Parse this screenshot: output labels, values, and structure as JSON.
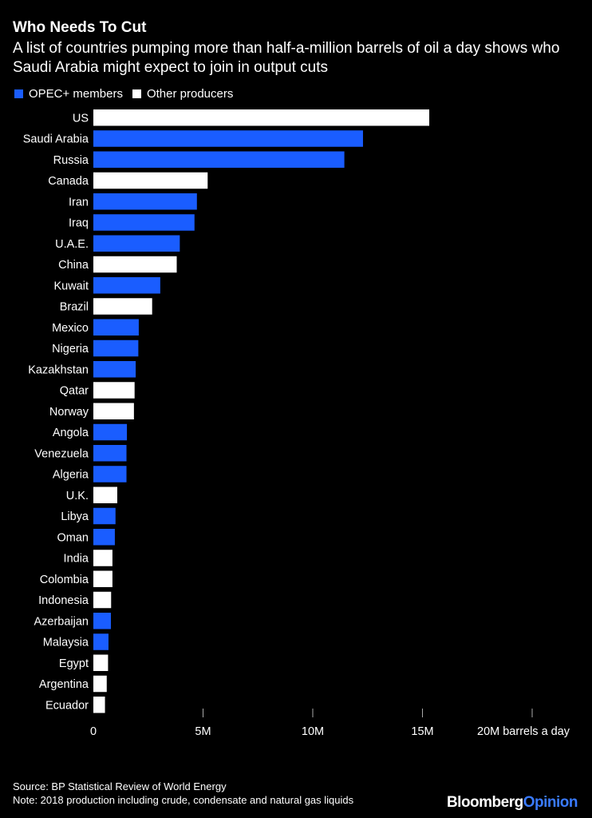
{
  "header": {
    "title": "Who Needs To Cut",
    "subtitle": "A list of countries pumping more than half-a-million barrels of oil a day shows who Saudi Arabia might expect to join in output cuts"
  },
  "legend": {
    "items": [
      {
        "label": "OPEC+ members",
        "color": "#1a5dff"
      },
      {
        "label": "Other producers",
        "color": "#ffffff"
      }
    ]
  },
  "chart_data": {
    "type": "bar",
    "orientation": "horizontal",
    "x_tick_labels": [
      "0",
      "5M",
      "10M",
      "15M",
      "20M barrels a day"
    ],
    "x_ticks": [
      0,
      5,
      10,
      15,
      20
    ],
    "xlim": [
      0,
      20
    ],
    "grid": false,
    "legend_position": "top-left",
    "series": [
      {
        "name": "OPEC+ members",
        "color": "#1a5dff"
      },
      {
        "name": "Other producers",
        "color": "#ffffff"
      }
    ],
    "categories": [
      "US",
      "Saudi Arabia",
      "Russia",
      "Canada",
      "Iran",
      "Iraq",
      "U.A.E.",
      "China",
      "Kuwait",
      "Brazil",
      "Mexico",
      "Nigeria",
      "Kazakhstan",
      "Qatar",
      "Norway",
      "Angola",
      "Venezuela",
      "Algeria",
      "U.K.",
      "Libya",
      "Oman",
      "India",
      "Colombia",
      "Indonesia",
      "Azerbaijan",
      "Malaysia",
      "Egypt",
      "Argentina",
      "Ecuador"
    ],
    "values": [
      15.31,
      12.29,
      11.44,
      5.21,
      4.72,
      4.61,
      3.94,
      3.8,
      3.05,
      2.68,
      2.07,
      2.05,
      1.93,
      1.88,
      1.85,
      1.53,
      1.51,
      1.51,
      1.09,
      1.01,
      0.98,
      0.87,
      0.87,
      0.81,
      0.8,
      0.69,
      0.67,
      0.61,
      0.53
    ],
    "groups": [
      "Other producers",
      "OPEC+ members",
      "OPEC+ members",
      "Other producers",
      "OPEC+ members",
      "OPEC+ members",
      "OPEC+ members",
      "Other producers",
      "OPEC+ members",
      "Other producers",
      "OPEC+ members",
      "OPEC+ members",
      "OPEC+ members",
      "Other producers",
      "Other producers",
      "OPEC+ members",
      "OPEC+ members",
      "OPEC+ members",
      "Other producers",
      "OPEC+ members",
      "OPEC+ members",
      "Other producers",
      "Other producers",
      "Other producers",
      "OPEC+ members",
      "OPEC+ members",
      "Other producers",
      "Other producers",
      "Other producers"
    ]
  },
  "footer": {
    "source": "Source: BP Statistical Review of World Energy",
    "note": "Note: 2018 production including crude, condensate and natural gas liquids",
    "brand_part1": "Bloomberg",
    "brand_part2": "Opinion"
  }
}
